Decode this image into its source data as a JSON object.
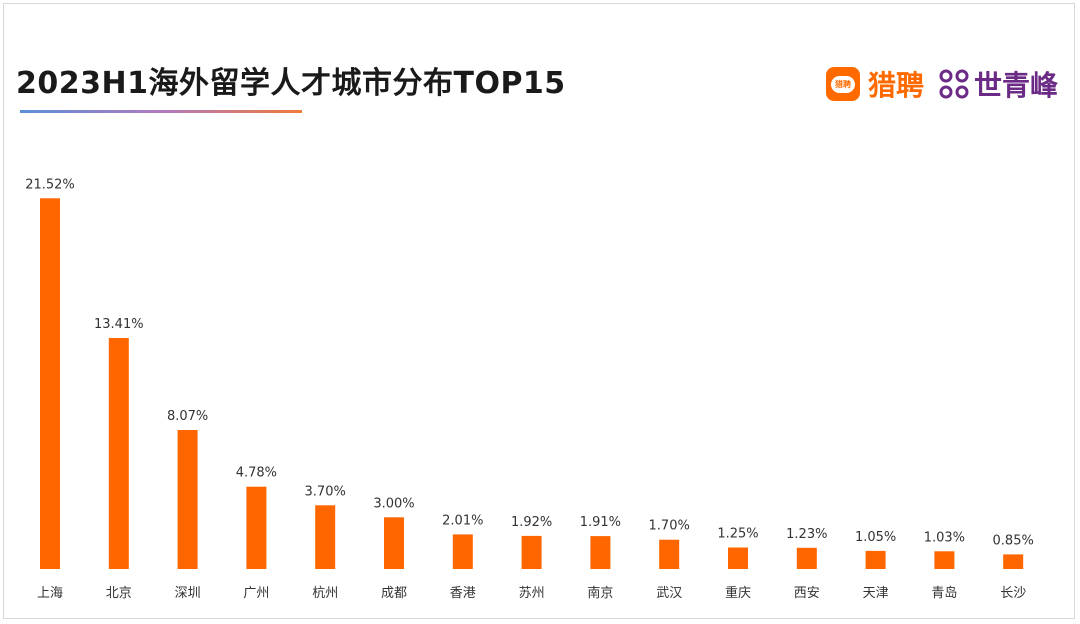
{
  "title": "2023H1海外留学人才城市分布TOP15",
  "brand": {
    "liepin_icon_text": "猎聘",
    "liepin_name": "猎聘",
    "sqf_name": "世青峰",
    "liepin_color": "#ff6a00",
    "sqf_color": "#6a2a86"
  },
  "chart_data": {
    "type": "bar",
    "title": "2023H1海外留学人才城市分布TOP15",
    "xlabel": "",
    "ylabel": "",
    "bar_color": "#ff6600",
    "grid": false,
    "ylim": [
      0,
      22
    ],
    "categories": [
      "上海",
      "北京",
      "深圳",
      "广州",
      "杭州",
      "成都",
      "香港",
      "苏州",
      "南京",
      "武汉",
      "重庆",
      "西安",
      "天津",
      "青岛",
      "长沙"
    ],
    "values": [
      21.52,
      13.41,
      8.07,
      4.78,
      3.7,
      3.0,
      2.01,
      1.92,
      1.91,
      1.7,
      1.25,
      1.23,
      1.05,
      1.03,
      0.85
    ],
    "value_labels": [
      "21.52%",
      "13.41%",
      "8.07%",
      "4.78%",
      "3.70%",
      "3.00%",
      "2.01%",
      "1.92%",
      "1.91%",
      "1.70%",
      "1.25%",
      "1.23%",
      "1.05%",
      "1.03%",
      "0.85%"
    ]
  }
}
